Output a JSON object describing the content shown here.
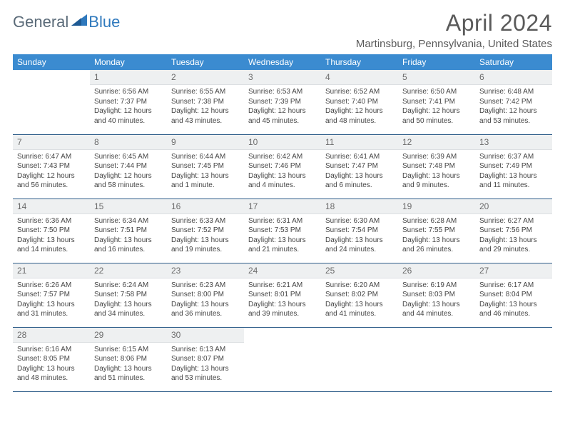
{
  "brand": {
    "part1": "General",
    "part2": "Blue"
  },
  "title": "April 2024",
  "location": "Martinsburg, Pennsylvania, United States",
  "colors": {
    "header_bg": "#3b8bd0",
    "header_text": "#ffffff",
    "daynum_bg": "#eef0f1",
    "rule": "#2f5e8a",
    "brand_gray": "#5a6a78",
    "brand_blue": "#2f79bd"
  },
  "weekdays": [
    "Sunday",
    "Monday",
    "Tuesday",
    "Wednesday",
    "Thursday",
    "Friday",
    "Saturday"
  ],
  "weeks": [
    [
      {
        "n": "",
        "sr": "",
        "ss": "",
        "dl": ""
      },
      {
        "n": "1",
        "sr": "Sunrise: 6:56 AM",
        "ss": "Sunset: 7:37 PM",
        "dl": "Daylight: 12 hours and 40 minutes."
      },
      {
        "n": "2",
        "sr": "Sunrise: 6:55 AM",
        "ss": "Sunset: 7:38 PM",
        "dl": "Daylight: 12 hours and 43 minutes."
      },
      {
        "n": "3",
        "sr": "Sunrise: 6:53 AM",
        "ss": "Sunset: 7:39 PM",
        "dl": "Daylight: 12 hours and 45 minutes."
      },
      {
        "n": "4",
        "sr": "Sunrise: 6:52 AM",
        "ss": "Sunset: 7:40 PM",
        "dl": "Daylight: 12 hours and 48 minutes."
      },
      {
        "n": "5",
        "sr": "Sunrise: 6:50 AM",
        "ss": "Sunset: 7:41 PM",
        "dl": "Daylight: 12 hours and 50 minutes."
      },
      {
        "n": "6",
        "sr": "Sunrise: 6:48 AM",
        "ss": "Sunset: 7:42 PM",
        "dl": "Daylight: 12 hours and 53 minutes."
      }
    ],
    [
      {
        "n": "7",
        "sr": "Sunrise: 6:47 AM",
        "ss": "Sunset: 7:43 PM",
        "dl": "Daylight: 12 hours and 56 minutes."
      },
      {
        "n": "8",
        "sr": "Sunrise: 6:45 AM",
        "ss": "Sunset: 7:44 PM",
        "dl": "Daylight: 12 hours and 58 minutes."
      },
      {
        "n": "9",
        "sr": "Sunrise: 6:44 AM",
        "ss": "Sunset: 7:45 PM",
        "dl": "Daylight: 13 hours and 1 minute."
      },
      {
        "n": "10",
        "sr": "Sunrise: 6:42 AM",
        "ss": "Sunset: 7:46 PM",
        "dl": "Daylight: 13 hours and 4 minutes."
      },
      {
        "n": "11",
        "sr": "Sunrise: 6:41 AM",
        "ss": "Sunset: 7:47 PM",
        "dl": "Daylight: 13 hours and 6 minutes."
      },
      {
        "n": "12",
        "sr": "Sunrise: 6:39 AM",
        "ss": "Sunset: 7:48 PM",
        "dl": "Daylight: 13 hours and 9 minutes."
      },
      {
        "n": "13",
        "sr": "Sunrise: 6:37 AM",
        "ss": "Sunset: 7:49 PM",
        "dl": "Daylight: 13 hours and 11 minutes."
      }
    ],
    [
      {
        "n": "14",
        "sr": "Sunrise: 6:36 AM",
        "ss": "Sunset: 7:50 PM",
        "dl": "Daylight: 13 hours and 14 minutes."
      },
      {
        "n": "15",
        "sr": "Sunrise: 6:34 AM",
        "ss": "Sunset: 7:51 PM",
        "dl": "Daylight: 13 hours and 16 minutes."
      },
      {
        "n": "16",
        "sr": "Sunrise: 6:33 AM",
        "ss": "Sunset: 7:52 PM",
        "dl": "Daylight: 13 hours and 19 minutes."
      },
      {
        "n": "17",
        "sr": "Sunrise: 6:31 AM",
        "ss": "Sunset: 7:53 PM",
        "dl": "Daylight: 13 hours and 21 minutes."
      },
      {
        "n": "18",
        "sr": "Sunrise: 6:30 AM",
        "ss": "Sunset: 7:54 PM",
        "dl": "Daylight: 13 hours and 24 minutes."
      },
      {
        "n": "19",
        "sr": "Sunrise: 6:28 AM",
        "ss": "Sunset: 7:55 PM",
        "dl": "Daylight: 13 hours and 26 minutes."
      },
      {
        "n": "20",
        "sr": "Sunrise: 6:27 AM",
        "ss": "Sunset: 7:56 PM",
        "dl": "Daylight: 13 hours and 29 minutes."
      }
    ],
    [
      {
        "n": "21",
        "sr": "Sunrise: 6:26 AM",
        "ss": "Sunset: 7:57 PM",
        "dl": "Daylight: 13 hours and 31 minutes."
      },
      {
        "n": "22",
        "sr": "Sunrise: 6:24 AM",
        "ss": "Sunset: 7:58 PM",
        "dl": "Daylight: 13 hours and 34 minutes."
      },
      {
        "n": "23",
        "sr": "Sunrise: 6:23 AM",
        "ss": "Sunset: 8:00 PM",
        "dl": "Daylight: 13 hours and 36 minutes."
      },
      {
        "n": "24",
        "sr": "Sunrise: 6:21 AM",
        "ss": "Sunset: 8:01 PM",
        "dl": "Daylight: 13 hours and 39 minutes."
      },
      {
        "n": "25",
        "sr": "Sunrise: 6:20 AM",
        "ss": "Sunset: 8:02 PM",
        "dl": "Daylight: 13 hours and 41 minutes."
      },
      {
        "n": "26",
        "sr": "Sunrise: 6:19 AM",
        "ss": "Sunset: 8:03 PM",
        "dl": "Daylight: 13 hours and 44 minutes."
      },
      {
        "n": "27",
        "sr": "Sunrise: 6:17 AM",
        "ss": "Sunset: 8:04 PM",
        "dl": "Daylight: 13 hours and 46 minutes."
      }
    ],
    [
      {
        "n": "28",
        "sr": "Sunrise: 6:16 AM",
        "ss": "Sunset: 8:05 PM",
        "dl": "Daylight: 13 hours and 48 minutes."
      },
      {
        "n": "29",
        "sr": "Sunrise: 6:15 AM",
        "ss": "Sunset: 8:06 PM",
        "dl": "Daylight: 13 hours and 51 minutes."
      },
      {
        "n": "30",
        "sr": "Sunrise: 6:13 AM",
        "ss": "Sunset: 8:07 PM",
        "dl": "Daylight: 13 hours and 53 minutes."
      },
      {
        "n": "",
        "sr": "",
        "ss": "",
        "dl": ""
      },
      {
        "n": "",
        "sr": "",
        "ss": "",
        "dl": ""
      },
      {
        "n": "",
        "sr": "",
        "ss": "",
        "dl": ""
      },
      {
        "n": "",
        "sr": "",
        "ss": "",
        "dl": ""
      }
    ]
  ]
}
